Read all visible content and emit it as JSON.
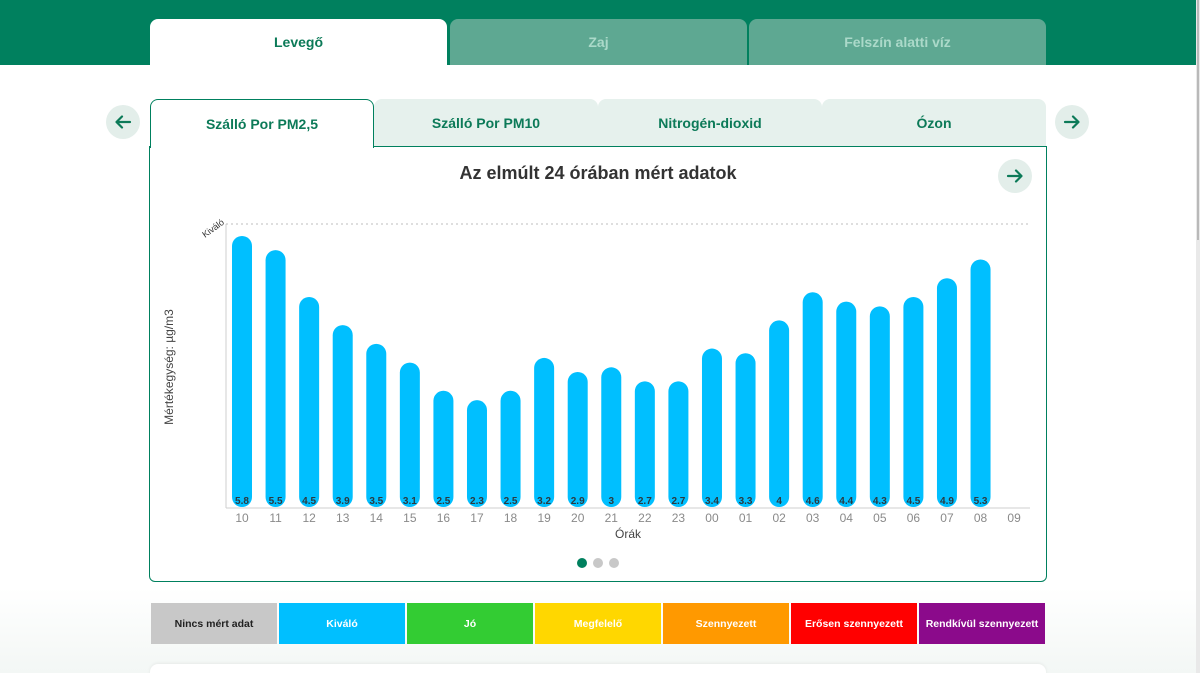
{
  "main_tabs": [
    {
      "label": "Levegő",
      "active": true
    },
    {
      "label": "Zaj",
      "active": false
    },
    {
      "label": "Felszín alatti víz",
      "active": false
    }
  ],
  "sub_tabs": [
    {
      "label": "Szálló Por PM2,5",
      "active": true
    },
    {
      "label": "Szálló Por PM10",
      "active": false
    },
    {
      "label": "Nitrogén-dioxid",
      "active": false
    },
    {
      "label": "Ózon",
      "active": false
    }
  ],
  "chart_title": "Az elmúlt 24 órában mért adatok",
  "colors": {
    "brand_green": "#00805e",
    "bar": "#00bfff",
    "tab_text": "#0c7a58"
  },
  "chart_data": {
    "type": "bar",
    "categories": [
      "10",
      "11",
      "12",
      "13",
      "14",
      "15",
      "16",
      "17",
      "18",
      "19",
      "20",
      "21",
      "22",
      "23",
      "00",
      "01",
      "02",
      "03",
      "04",
      "05",
      "06",
      "07",
      "08",
      "09"
    ],
    "values": [
      5.8,
      5.5,
      4.5,
      3.9,
      3.5,
      3.1,
      2.5,
      2.3,
      2.5,
      3.2,
      2.9,
      3,
      2.7,
      2.7,
      3.4,
      3.3,
      4,
      4.6,
      4.4,
      4.3,
      4.5,
      4.9,
      5.3,
      null
    ],
    "value_labels": [
      "5.8",
      "5.5",
      "4.5",
      "3.9",
      "3.5",
      "3.1",
      "2.5",
      "2.3",
      "2.5",
      "3.2",
      "2.9",
      "3",
      "2.7",
      "2.7",
      "3.4",
      "3.3",
      "4",
      "4.6",
      "4.4",
      "4.3",
      "4.5",
      "4.9",
      "5.3",
      ""
    ],
    "xlabel": "Órák",
    "ylabel": "Mértékegység: µg/m3",
    "threshold_label": "Kiváló",
    "threshold_line": "dotted",
    "grid": false
  },
  "pagination": {
    "pages": 3,
    "current": 1
  },
  "legend": [
    {
      "label": "Nincs mért adat",
      "bg": "#c8c8c8",
      "fg": "#222222"
    },
    {
      "label": "Kiváló",
      "bg": "#00bfff",
      "fg": "#ffffff"
    },
    {
      "label": "Jó",
      "bg": "#33cc33",
      "fg": "#ffffff"
    },
    {
      "label": "Megfelelő",
      "bg": "#ffd700",
      "fg": "#ffffff"
    },
    {
      "label": "Szennyezett",
      "bg": "#ff9900",
      "fg": "#ffffff"
    },
    {
      "label": "Erősen szennyezett",
      "bg": "#ff0000",
      "fg": "#ffffff"
    },
    {
      "label": "Rendkívül szennyezett",
      "bg": "#8b0a8b",
      "fg": "#ffffff"
    }
  ]
}
